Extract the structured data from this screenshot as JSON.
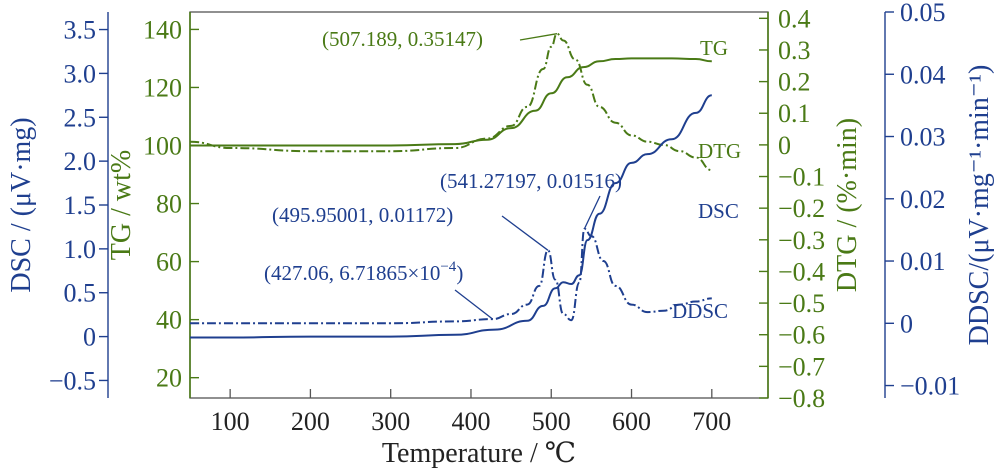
{
  "chart_data": {
    "type": "line",
    "xlabel": "Temperature / ℃",
    "xlim": [
      50,
      770
    ],
    "xticks": [
      100,
      200,
      300,
      400,
      500,
      600,
      700
    ],
    "colors": {
      "dsc": "#1f3f8f",
      "tg": "#4a7a16",
      "ddsc": "#1f3f8f"
    },
    "axes": {
      "dsc": {
        "label": "DSC / (μV·mg)",
        "lim": [
          -0.7,
          3.7
        ],
        "ticks": [
          -0.5,
          0,
          0.5,
          1.0,
          1.5,
          2.0,
          2.5,
          3.0,
          3.5
        ],
        "tick_labels": [
          "−0.5",
          "0",
          "0.5",
          "1.0",
          "1.5",
          "2.0",
          "2.5",
          "3.0",
          "3.5"
        ]
      },
      "tg": {
        "label": "TG / wt%",
        "lim": [
          13,
          146
        ],
        "ticks": [
          20,
          40,
          60,
          80,
          100,
          120,
          140
        ],
        "tick_labels": [
          "20",
          "40",
          "60",
          "80",
          "100",
          "120",
          "140"
        ]
      },
      "dtg": {
        "label": "DTG / (%·min)",
        "lim": [
          -0.8,
          0.42
        ],
        "ticks": [
          -0.8,
          -0.7,
          -0.6,
          -0.5,
          -0.4,
          -0.3,
          -0.2,
          -0.1,
          0,
          0.1,
          0.2,
          0.3,
          0.4
        ],
        "tick_labels": [
          "−0.8",
          "−0.7",
          "−0.6",
          "−0.5",
          "−0.4",
          "−0.3",
          "−0.2",
          "−0.1",
          "0",
          "0.1",
          "0.2",
          "0.3",
          "0.4"
        ]
      },
      "ddsc": {
        "label": "DDSC/(μV·mg⁻¹·min⁻¹)",
        "lim": [
          -0.012,
          0.05
        ],
        "ticks": [
          -0.01,
          0,
          0.01,
          0.02,
          0.03,
          0.04,
          0.05
        ],
        "tick_labels": [
          "−0.01",
          "0",
          "0.01",
          "0.02",
          "0.03",
          "0.04",
          "0.05"
        ]
      }
    },
    "series": [
      {
        "name": "TG",
        "axis": "tg",
        "style": "solid",
        "x": [
          50,
          100,
          200,
          300,
          380,
          420,
          450,
          480,
          500,
          520,
          540,
          560,
          580,
          600,
          620,
          650,
          680,
          700
        ],
        "y": [
          100,
          100,
          100,
          100,
          100.5,
          102,
          106,
          112,
          118,
          123.5,
          127,
          129,
          129.8,
          130,
          130,
          130,
          129.8,
          129
        ]
      },
      {
        "name": "DTG",
        "axis": "dtg",
        "style": "dashdot",
        "x": [
          50,
          100,
          200,
          300,
          380,
          420,
          450,
          470,
          490,
          500,
          507.189,
          515,
          530,
          545,
          560,
          580,
          600,
          620,
          640,
          660,
          680,
          700
        ],
        "y": [
          0.01,
          -0.01,
          -0.02,
          -0.02,
          -0.01,
          0.02,
          0.06,
          0.12,
          0.24,
          0.31,
          0.35147,
          0.33,
          0.27,
          0.19,
          0.12,
          0.07,
          0.03,
          0.01,
          0.0,
          -0.02,
          -0.04,
          -0.08
        ]
      },
      {
        "name": "DSC",
        "axis": "dsc",
        "style": "solid",
        "x": [
          50,
          100,
          200,
          300,
          380,
          430,
          470,
          490,
          505,
          515,
          525,
          535,
          545,
          560,
          580,
          600,
          620,
          650,
          680,
          700
        ],
        "y": [
          -0.01,
          -0.01,
          0.0,
          0.0,
          0.02,
          0.08,
          0.18,
          0.35,
          0.55,
          0.62,
          0.6,
          0.7,
          1.1,
          1.4,
          1.75,
          1.98,
          2.08,
          2.25,
          2.55,
          2.75
        ]
      },
      {
        "name": "DDSC",
        "axis": "ddsc",
        "style": "dashdot",
        "x": [
          50,
          100,
          200,
          300,
          380,
          427.06,
          450,
          470,
          485,
          495.95001,
          505,
          515,
          525,
          535,
          541.27197,
          550,
          565,
          580,
          600,
          620,
          640,
          660,
          680,
          700
        ],
        "y": [
          0.0,
          0.0,
          0.0,
          0.0,
          0.0003,
          0.000671865,
          0.0015,
          0.003,
          0.006,
          0.01172,
          0.007,
          0.0015,
          0.0005,
          0.0065,
          0.01516,
          0.014,
          0.01,
          0.006,
          0.003,
          0.0018,
          0.002,
          0.003,
          0.0035,
          0.004
        ]
      }
    ],
    "series_labels": [
      {
        "series": "TG",
        "text": "TG"
      },
      {
        "series": "DTG",
        "text": "DTG"
      },
      {
        "series": "DSC",
        "text": "DSC"
      },
      {
        "series": "DDSC",
        "text": "DDSC"
      }
    ],
    "annotations": [
      {
        "axis": "dtg",
        "x": 507.189,
        "y": 0.35147,
        "text": "(507.189, 0.35147)"
      },
      {
        "axis": "ddsc",
        "x": 541.27197,
        "y": 0.01516,
        "text": "(541.27197, 0.01516)"
      },
      {
        "axis": "ddsc",
        "x": 495.95001,
        "y": 0.01172,
        "text": "(495.95001, 0.01172)"
      },
      {
        "axis": "ddsc",
        "x": 427.06,
        "y": 0.000671865,
        "text_main": "(427.06, 6.71865×10",
        "text_sup": "−4",
        "text_end": ")"
      }
    ]
  }
}
